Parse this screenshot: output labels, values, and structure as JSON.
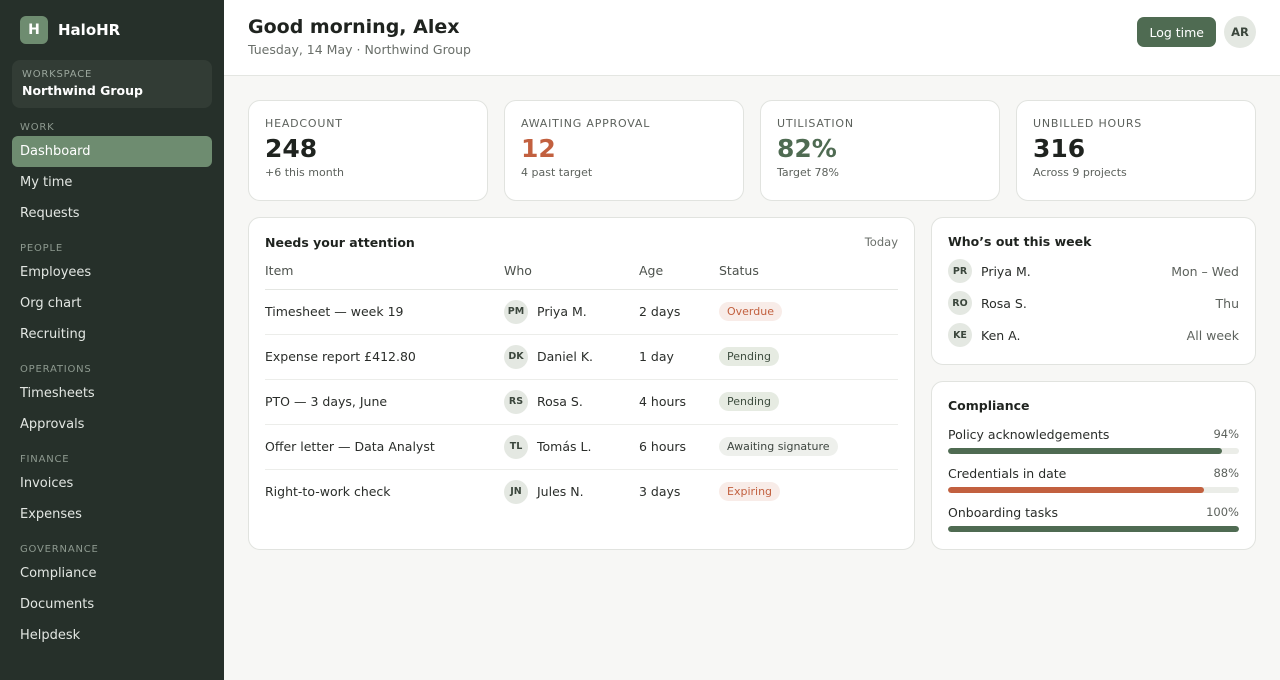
{
  "brand": {
    "logo_letter": "H",
    "name": "HaloHR"
  },
  "workspace": {
    "label": "WORKSPACE",
    "name": "Northwind Group"
  },
  "nav": [
    {
      "section": "WORK",
      "items": [
        {
          "label": "Dashboard",
          "active": true
        },
        {
          "label": "My time"
        },
        {
          "label": "Requests"
        }
      ]
    },
    {
      "section": "PEOPLE",
      "items": [
        {
          "label": "Employees"
        },
        {
          "label": "Org chart"
        },
        {
          "label": "Recruiting"
        }
      ]
    },
    {
      "section": "OPERATIONS",
      "items": [
        {
          "label": "Timesheets"
        },
        {
          "label": "Approvals"
        }
      ]
    },
    {
      "section": "FINANCE",
      "items": [
        {
          "label": "Invoices"
        },
        {
          "label": "Expenses"
        }
      ]
    },
    {
      "section": "GOVERNANCE",
      "items": [
        {
          "label": "Compliance"
        },
        {
          "label": "Documents"
        },
        {
          "label": "Helpdesk"
        }
      ]
    }
  ],
  "header": {
    "greeting": "Good morning, Alex",
    "subline": "Tuesday, 14 May · Northwind Group",
    "log_time_label": "Log time",
    "user_initials": "AR"
  },
  "stats": [
    {
      "label": "HEADCOUNT",
      "value": "248",
      "sub": "+6 this month",
      "tone": "normal"
    },
    {
      "label": "AWAITING APPROVAL",
      "value": "12",
      "sub": "4 past target",
      "tone": "warn"
    },
    {
      "label": "UTILISATION",
      "value": "82%",
      "sub": "Target 78%",
      "tone": "good"
    },
    {
      "label": "UNBILLED HOURS",
      "value": "316",
      "sub": "Across 9 projects",
      "tone": "normal"
    }
  ],
  "attention": {
    "title": "Needs your attention",
    "meta": "Today",
    "columns": [
      "Item",
      "Who",
      "Age",
      "Status"
    ],
    "rows": [
      {
        "item": "Timesheet — week 19",
        "initials": "PM",
        "who": "Priya M.",
        "age": "2 days",
        "status": "Overdue",
        "kind": "overdue"
      },
      {
        "item": "Expense report £412.80",
        "initials": "DK",
        "who": "Daniel K.",
        "age": "1 day",
        "status": "Pending",
        "kind": "pending"
      },
      {
        "item": "PTO — 3 days, June",
        "initials": "RS",
        "who": "Rosa S.",
        "age": "4 hours",
        "status": "Pending",
        "kind": "pending"
      },
      {
        "item": "Offer letter — Data Analyst",
        "initials": "TL",
        "who": "Tomás L.",
        "age": "6 hours",
        "status": "Awaiting signature",
        "kind": "awaiting"
      },
      {
        "item": "Right-to-work check",
        "initials": "JN",
        "who": "Jules N.",
        "age": "3 days",
        "status": "Expiring",
        "kind": "expiring"
      }
    ]
  },
  "out_this_week": {
    "title": "Who’s out this week",
    "people": [
      {
        "initials": "PR",
        "name": "Priya M.",
        "days": "Mon – Wed"
      },
      {
        "initials": "RO",
        "name": "Rosa S.",
        "days": "Thu"
      },
      {
        "initials": "KE",
        "name": "Ken A.",
        "days": "All week"
      }
    ]
  },
  "compliance": {
    "title": "Compliance",
    "items": [
      {
        "label": "Policy acknowledgements",
        "pct_label": "94%",
        "value": 0.94,
        "color": "#4f6b52"
      },
      {
        "label": "Credentials in date",
        "pct_label": "88%",
        "value": 0.88,
        "color": "#c2603f"
      },
      {
        "label": "Onboarding tasks",
        "pct_label": "100%",
        "value": 1.0,
        "color": "#4f6b52"
      }
    ]
  }
}
